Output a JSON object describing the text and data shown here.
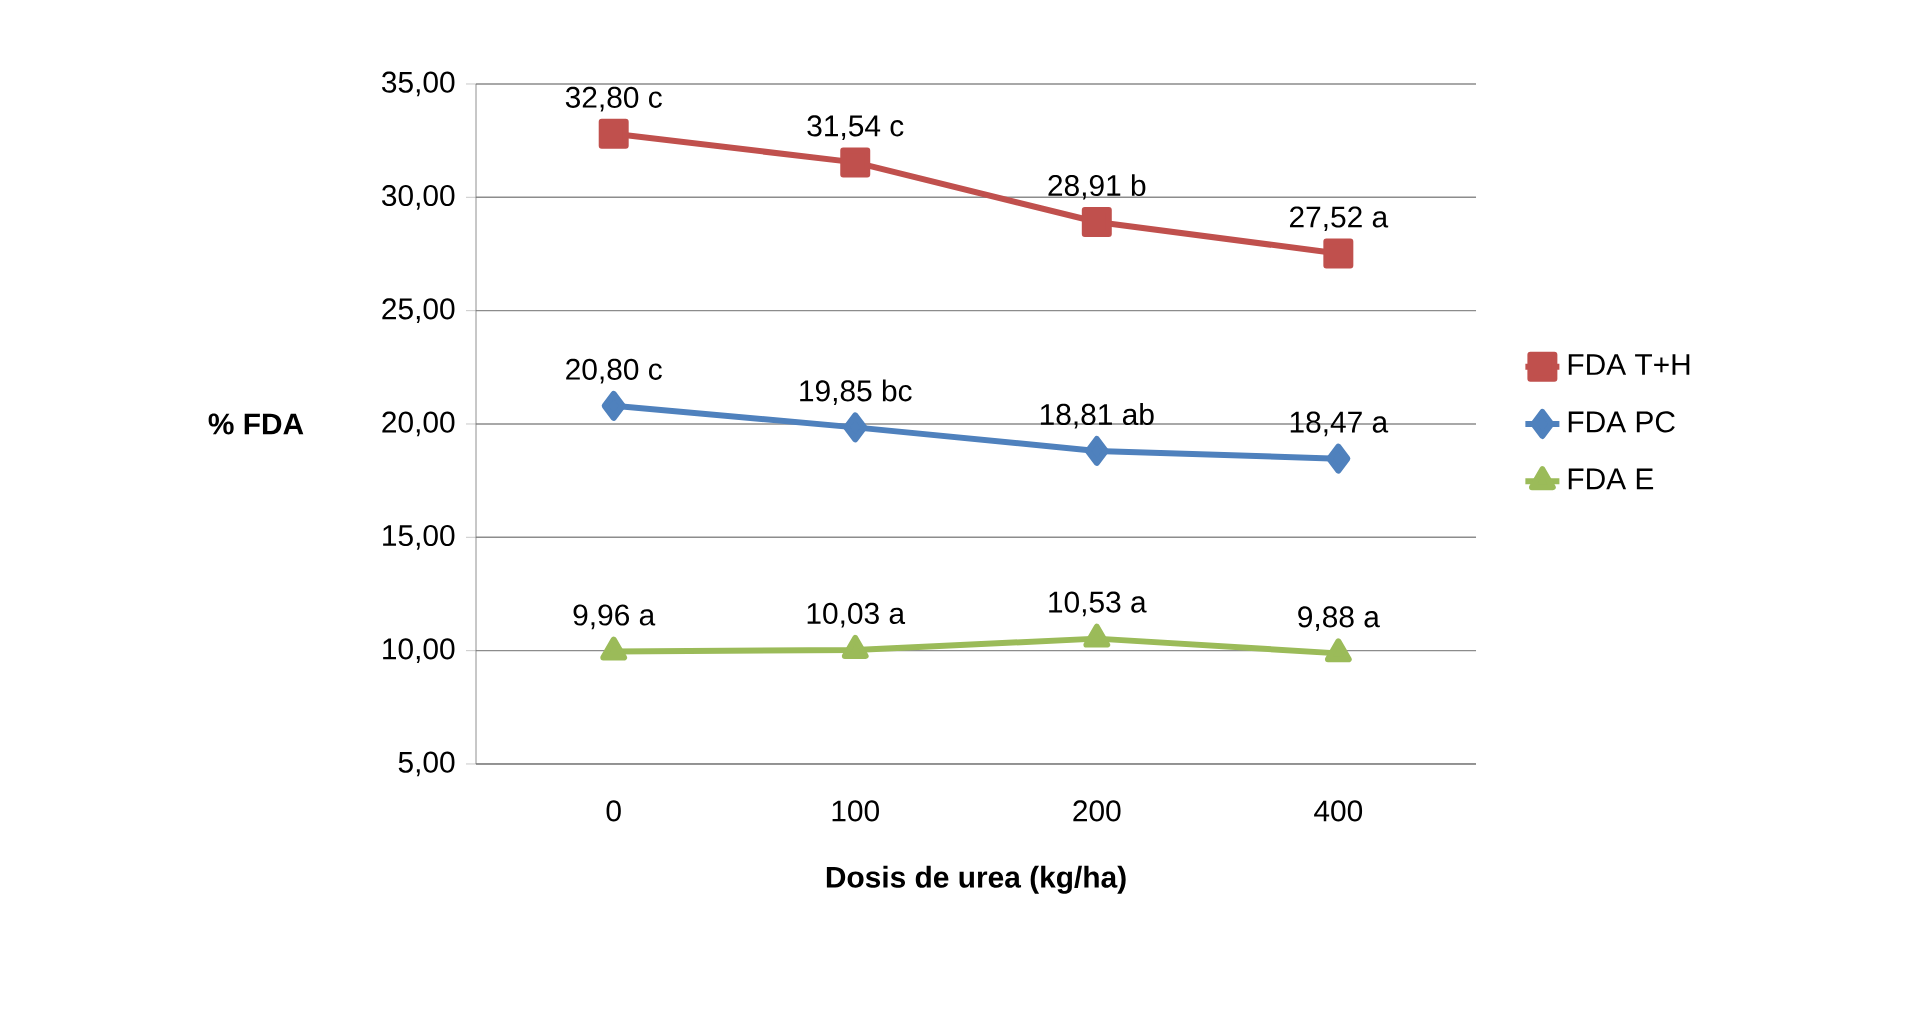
{
  "chart_data": {
    "type": "line",
    "xlabel": "Dosis de urea (kg/ha)",
    "ylabel": "% FDA",
    "categories": [
      "0",
      "100",
      "200",
      "400"
    ],
    "series": [
      {
        "name": "FDA T+H",
        "color": "#c0504d",
        "marker": "square",
        "values": [
          32.8,
          31.54,
          28.91,
          27.52
        ],
        "value_labels": [
          "32,80 c",
          "31,54 c",
          "28,91 b",
          "27,52 a"
        ]
      },
      {
        "name": "FDA PC",
        "color": "#4f81bd",
        "marker": "diamond",
        "values": [
          20.8,
          19.85,
          18.81,
          18.47
        ],
        "value_labels": [
          "20,80 c",
          "19,85 bc",
          "18,81 ab",
          "18,47 a"
        ]
      },
      {
        "name": "FDA E",
        "color": "#9bbb59",
        "marker": "triangle",
        "values": [
          9.96,
          10.03,
          10.53,
          9.88
        ],
        "value_labels": [
          "9,96 a",
          "10,03 a",
          "10,53 a",
          "9,88 a"
        ]
      }
    ],
    "ylim": [
      5,
      35
    ],
    "yticks": [
      {
        "value": 5,
        "label": "5,00"
      },
      {
        "value": 10,
        "label": "10,00"
      },
      {
        "value": 15,
        "label": "15,00"
      },
      {
        "value": 20,
        "label": "20,00"
      },
      {
        "value": 25,
        "label": "25,00"
      },
      {
        "value": 30,
        "label": "30,00"
      },
      {
        "value": 35,
        "label": "35,00"
      }
    ],
    "grid": "y",
    "legend": "right",
    "line_style": "solid"
  }
}
